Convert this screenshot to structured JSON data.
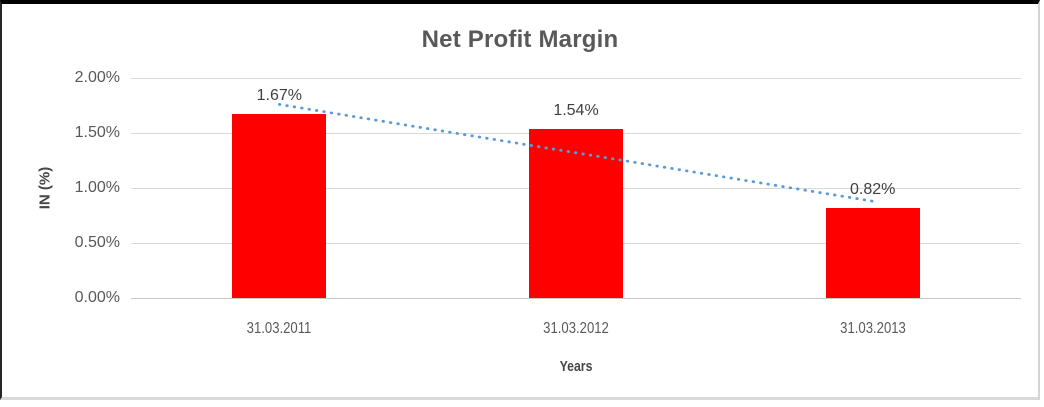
{
  "chart_data": {
    "type": "bar",
    "title": "Net Profit Margin",
    "categories": [
      "31.03.2011",
      "31.03.2012",
      "31.03.2013"
    ],
    "values": [
      1.67,
      1.54,
      0.82
    ],
    "value_labels": [
      "1.67%",
      "1.54%",
      "0.82%"
    ],
    "xlabel": "Years",
    "ylabel": "IN (%)",
    "ylim": [
      0,
      2
    ],
    "yticks": [
      "2.00%",
      "1.50%",
      "1.00%",
      "0.50%",
      "0.00%"
    ],
    "grid": true,
    "legend": false,
    "bar_color": "#FF0000",
    "label_color": "#404040",
    "tick_color": "#595959",
    "title_color": "#595959",
    "trendline": {
      "type": "linear",
      "style": "dotted",
      "color": "#5B9BD5",
      "start_value": 1.76,
      "end_value": 0.88
    }
  }
}
